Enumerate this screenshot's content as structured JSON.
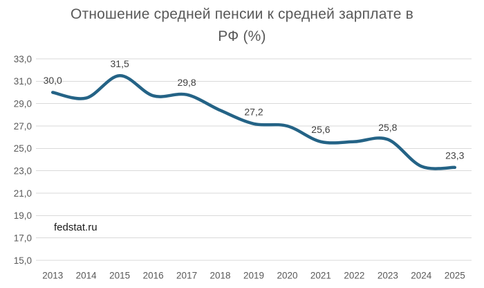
{
  "page": {
    "source_label": "fedstat.ru"
  },
  "chart_data": {
    "type": "line",
    "title": "Отношение средней пенсии к средней зарплате в РФ (%)",
    "title_lines": [
      "Отношение средней пенсии к средней зарплате в",
      "РФ (%)"
    ],
    "categories": [
      "2013",
      "2014",
      "2015",
      "2016",
      "2017",
      "2018",
      "2019",
      "2020",
      "2021",
      "2022",
      "2023",
      "2024",
      "2025"
    ],
    "series": [
      {
        "name": "Отношение средней пенсии к средней зарплате в РФ (%)",
        "values": [
          30.0,
          29.5,
          31.5,
          29.7,
          29.8,
          28.4,
          27.2,
          27.0,
          25.6,
          25.6,
          25.8,
          23.4,
          23.3
        ]
      }
    ],
    "point_labels": [
      "30,0",
      "",
      "31,5",
      "",
      "29,8",
      "",
      "27,2",
      "",
      "25,6",
      "",
      "25,8",
      "",
      "23,3"
    ],
    "ylim": [
      15.0,
      33.0
    ],
    "ytick_values": [
      33,
      31,
      29,
      27,
      25,
      23,
      21,
      19,
      17,
      15
    ],
    "ytick_labels": [
      "33,0",
      "31,0",
      "29,0",
      "27,0",
      "25,0",
      "23,0",
      "21,0",
      "19,0",
      "17,0",
      "15,0"
    ],
    "grid": true,
    "legend": "none",
    "smooth": true,
    "source": "fedstat.ru",
    "colors": {
      "line": "#246386",
      "grid": "#d9d9d9",
      "axis_text": "#595959",
      "title_text": "#595959",
      "data_label_text": "#404040",
      "source_text": "#1a1a1a",
      "background": "#ffffff"
    }
  }
}
